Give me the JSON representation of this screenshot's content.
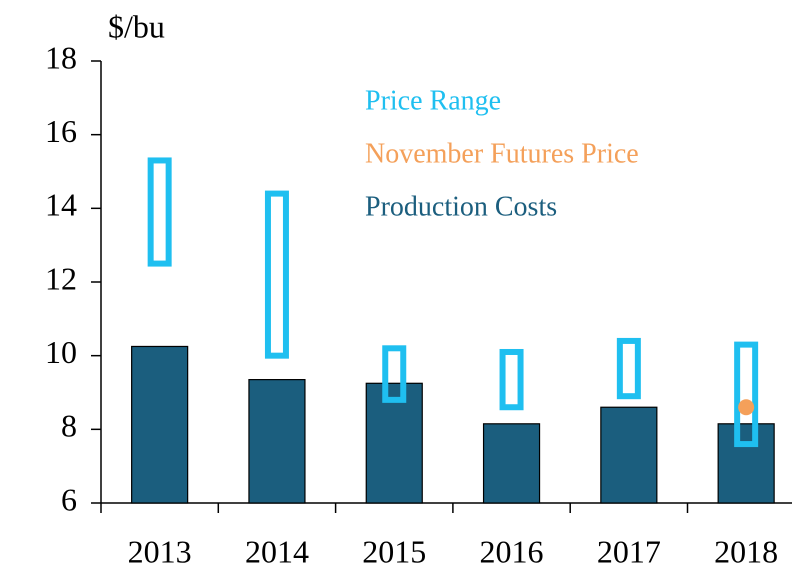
{
  "chart_data": {
    "type": "bar",
    "y_label": "$/bu",
    "categories": [
      "2013",
      "2014",
      "2015",
      "2016",
      "2017",
      "2018"
    ],
    "series": [
      {
        "name": "Price Range",
        "type": "range",
        "color": "#1fbff0",
        "low": [
          12.5,
          10.0,
          8.8,
          8.6,
          8.9,
          7.6
        ],
        "high": [
          15.3,
          14.4,
          10.2,
          10.1,
          10.4,
          10.3
        ]
      },
      {
        "name": "November Futures Price",
        "type": "dot",
        "color": "#f4a05a",
        "values": [
          null,
          null,
          null,
          null,
          null,
          8.6
        ]
      },
      {
        "name": "Production Costs",
        "type": "bar",
        "color": "#1b5e7e",
        "values": [
          10.25,
          9.35,
          9.25,
          8.15,
          8.6,
          8.15
        ]
      }
    ],
    "ylim": [
      6,
      18
    ],
    "yticks": [
      6,
      8,
      10,
      12,
      14,
      16,
      18
    ],
    "grid": false
  }
}
